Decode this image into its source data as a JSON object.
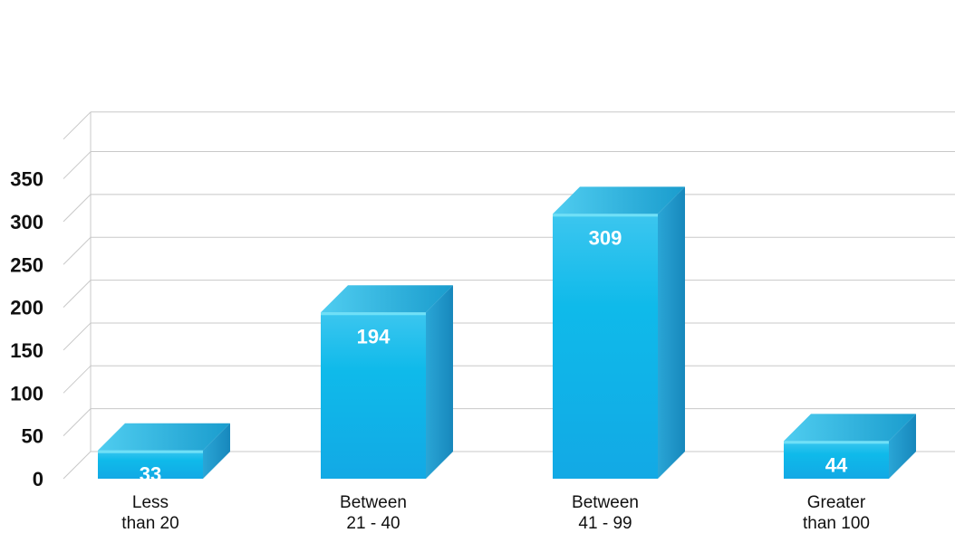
{
  "chart_data": {
    "type": "bar",
    "categories": [
      [
        "Less",
        "than 20"
      ],
      [
        "Between",
        "21 - 40"
      ],
      [
        "Between",
        "41 - 99"
      ],
      [
        "Greater",
        "than 100"
      ]
    ],
    "values": [
      33,
      194,
      309,
      44
    ],
    "ylim": [
      0,
      350
    ],
    "yticks": [
      0,
      50,
      100,
      150,
      200,
      250,
      300,
      350
    ],
    "grid": true,
    "style": "3d",
    "colors": {
      "front_top": "#3bc4ee",
      "front_bottom": "#11a8e4",
      "side": "#1f96c8",
      "top": "#1aa6d4",
      "top_edge": "#6fe0f7",
      "grid": "#c8c8c8"
    }
  }
}
